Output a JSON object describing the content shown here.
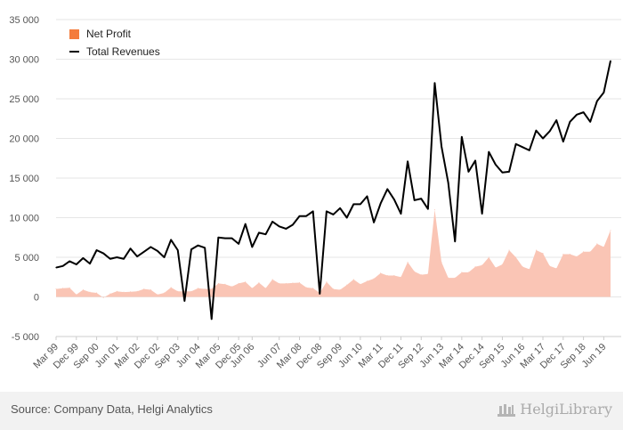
{
  "chart_data": {
    "type": "area",
    "x": [
      "Mar 99",
      "Jun 99",
      "Sep 99",
      "Dec 99",
      "Mar 00",
      "Jun 00",
      "Sep 00",
      "Dec 00",
      "Mar 01",
      "Jun 01",
      "Sep 01",
      "Dec 01",
      "Mar 02",
      "Jun 02",
      "Sep 02",
      "Dec 02",
      "Mar 03",
      "Jun 03",
      "Sep 03",
      "Dec 03",
      "Mar 04",
      "Jun 04",
      "Sep 04",
      "Dec 04",
      "Mar 05",
      "Jun 05",
      "Sep 05",
      "Dec 05",
      "Mar 06",
      "Jun 06",
      "Sep 06",
      "Dec 06",
      "Mar 07",
      "Jun 07",
      "Sep 07",
      "Dec 07",
      "Mar 08",
      "Jun 08",
      "Sep 08",
      "Dec 08",
      "Mar 09",
      "Jun 09",
      "Sep 09",
      "Dec 09",
      "Mar 10",
      "Jun 10",
      "Sep 10",
      "Dec 10",
      "Mar 11",
      "Jun 11",
      "Sep 11",
      "Dec 11",
      "Mar 12",
      "Jun 12",
      "Sep 12",
      "Dec 12",
      "Mar 13",
      "Jun 13",
      "Sep 13",
      "Dec 13",
      "Mar 14",
      "Jun 14",
      "Sep 14",
      "Dec 14",
      "Mar 15",
      "Jun 15",
      "Sep 15",
      "Dec 15",
      "Mar 16",
      "Jun 16",
      "Sep 16",
      "Dec 16",
      "Mar 17",
      "Jun 17",
      "Sep 17",
      "Dec 17",
      "Mar 18",
      "Jun 18",
      "Sep 18",
      "Dec 18",
      "Mar 19",
      "Jun 19",
      "Sep 19"
    ],
    "xticks": [
      "Mar 99",
      "Dec 99",
      "Sep 00",
      "Jun 01",
      "Mar 02",
      "Dec 02",
      "Sep 03",
      "Jun 04",
      "Mar 05",
      "Dec 05",
      "Jun 06",
      "Jun 07",
      "Mar 08",
      "Dec 08",
      "Sep 09",
      "Jun 10",
      "Mar 11",
      "Dec 11",
      "Sep 12",
      "Jun 13",
      "Mar 14",
      "Dec 14",
      "Sep 15",
      "Jun 16",
      "Mar 17",
      "Dec 17",
      "Sep 18",
      "Jun 19"
    ],
    "series": [
      {
        "name": "Net Profit",
        "style": "area",
        "color": "#fac5b5",
        "values": [
          1000,
          1100,
          1150,
          300,
          900,
          600,
          500,
          -100,
          400,
          700,
          600,
          650,
          700,
          1000,
          900,
          300,
          500,
          1200,
          700,
          700,
          700,
          1100,
          1000,
          1000,
          1700,
          1600,
          1300,
          1700,
          1900,
          1100,
          1800,
          1100,
          2200,
          1700,
          1700,
          1750,
          1800,
          1200,
          1100,
          500,
          1900,
          1000,
          900,
          1500,
          2200,
          1600,
          2000,
          2300,
          3000,
          2700,
          2700,
          2500,
          4400,
          3200,
          2800,
          2900,
          11000,
          4400,
          2400,
          2400,
          3100,
          3100,
          3800,
          4000,
          5000,
          3700,
          4100,
          5900,
          5000,
          3800,
          3500,
          5900,
          5500,
          3900,
          3600,
          5400,
          5400,
          5100,
          5700,
          5700,
          6700,
          6300,
          8400
        ]
      },
      {
        "name": "Total Revenues",
        "style": "line",
        "color": "#000000",
        "values": [
          3700,
          3900,
          4500,
          4100,
          4900,
          4200,
          5900,
          5500,
          4800,
          5000,
          4800,
          6100,
          5100,
          5700,
          6300,
          5800,
          5000,
          7200,
          5900,
          -500,
          6000,
          6500,
          6200,
          -2800,
          7500,
          7400,
          7400,
          6700,
          9200,
          6300,
          8100,
          7900,
          9500,
          8900,
          8600,
          9100,
          10200,
          10200,
          10800,
          400,
          10800,
          10400,
          11200,
          10000,
          11700,
          11700,
          12700,
          9400,
          11800,
          13600,
          12300,
          10500,
          17100,
          12200,
          12400,
          11100,
          27000,
          19000,
          14400,
          7000,
          20200,
          15800,
          17200,
          10500,
          18300,
          16700,
          15700,
          15800,
          19300,
          18900,
          18500,
          21000,
          20000,
          20900,
          22300,
          19600,
          22100,
          23000,
          23300,
          22100,
          24700,
          25800,
          29800
        ]
      }
    ],
    "ylim": [
      -5000,
      35000
    ],
    "yticks": [
      -5000,
      0,
      5000,
      10000,
      15000,
      20000,
      25000,
      30000,
      35000
    ],
    "ytick_labels": [
      "-5 000",
      "0",
      "5 000",
      "10 000",
      "15 000",
      "20 000",
      "25 000",
      "30 000",
      "35 000"
    ],
    "grid": true,
    "legend_position": "top-left"
  },
  "legend": {
    "net_profit_label": "Net Profit",
    "total_revenues_label": "Total Revenues",
    "net_profit_color": "#f47c3c"
  },
  "footer": {
    "source": "Source: Company Data, Helgi Analytics",
    "brand": "HelgiLibrary"
  }
}
